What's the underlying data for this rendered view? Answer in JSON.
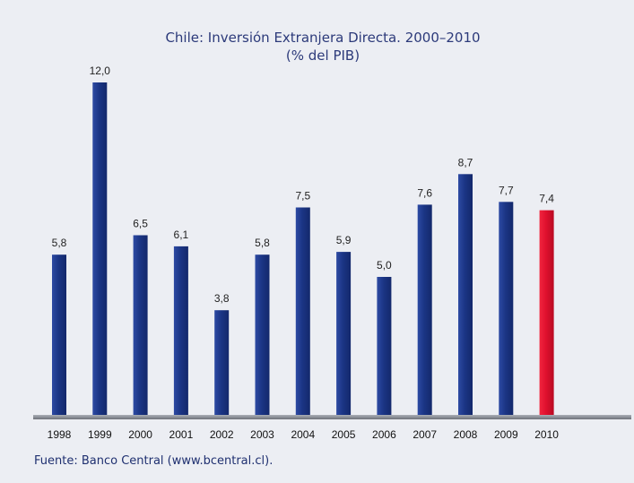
{
  "chart_data": {
    "type": "bar",
    "title": "Chile: Inversión Extranjera Directa. 2000–2010",
    "subtitle": "(% del PIB)",
    "categories": [
      "1998",
      "1999",
      "2000",
      "2001",
      "2002",
      "2003",
      "2004",
      "2005",
      "2006",
      "2007",
      "2008",
      "2009",
      "2010"
    ],
    "values": [
      5.8,
      12.0,
      6.5,
      6.1,
      3.8,
      5.8,
      7.5,
      5.9,
      5.0,
      7.6,
      8.7,
      7.7,
      7.4
    ],
    "value_labels": [
      "5,8",
      "12,0",
      "6,5",
      "6,1",
      "3,8",
      "5,8",
      "7,5",
      "5,9",
      "5,0",
      "7,6",
      "8,7",
      "7,7",
      "7,4"
    ],
    "highlight_category": "2010",
    "ylim": [
      0,
      12.5
    ],
    "xlabel": "",
    "ylabel": "",
    "grid": false,
    "colors": {
      "bar": "#1f3a8f",
      "bar_highlight": "#e0102e",
      "background": "#eceef3",
      "axis": "#888a90"
    }
  },
  "source_text": "Fuente: Banco Central (www.bcentral.cl)."
}
